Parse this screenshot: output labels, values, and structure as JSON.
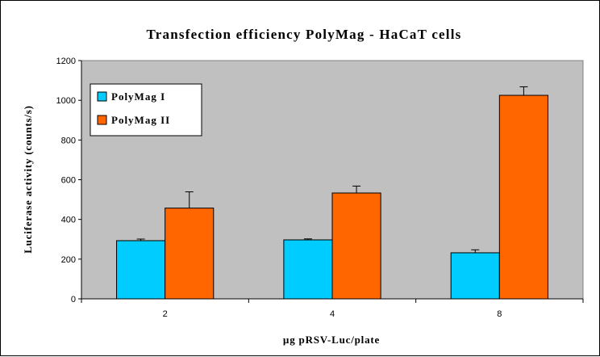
{
  "chart_data": {
    "type": "bar",
    "title": "Transfection efficiency PolyMag - HaCaT cells",
    "xlabel": "µg pRSV-Luc/plate",
    "ylabel": "Luciferase activity (counts/s)",
    "categories": [
      "2",
      "4",
      "8"
    ],
    "ylim": [
      0,
      1200
    ],
    "yticks": [
      0,
      200,
      400,
      600,
      800,
      1000,
      1200
    ],
    "grid": false,
    "legend_position": "top-left",
    "series": [
      {
        "name": "PolyMag I",
        "color": "#00ccff",
        "values": [
          293,
          297,
          232
        ],
        "errors": [
          8,
          5,
          15
        ]
      },
      {
        "name": "PolyMag II",
        "color": "#ff6600",
        "values": [
          457,
          533,
          1025
        ],
        "errors": [
          82,
          35,
          43
        ]
      }
    ],
    "plot_background": "#c0c0c0"
  }
}
